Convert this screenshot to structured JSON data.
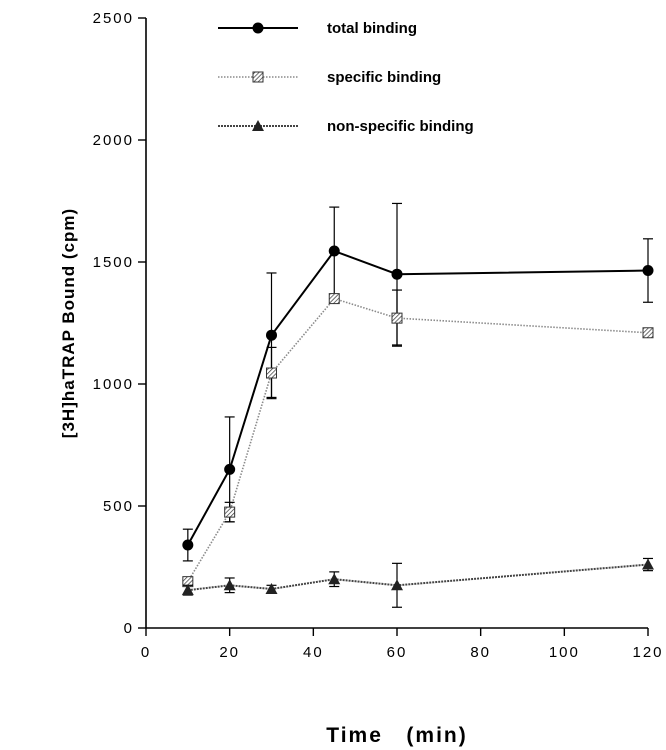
{
  "chart_data": {
    "type": "line",
    "xlabel": "Time   (min)",
    "ylabel": "[3H]haTRAP  Bound  (cpm)",
    "xlim": [
      0,
      120
    ],
    "ylim": [
      0,
      2500
    ],
    "xticks": [
      0,
      20,
      40,
      60,
      80,
      100,
      120
    ],
    "yticks": [
      0,
      500,
      1000,
      1500,
      2000,
      2500
    ],
    "xtick_labels": [
      "0",
      "20",
      "40",
      "60",
      "80",
      "100",
      "120"
    ],
    "ytick_labels": [
      "0",
      "500",
      "1000",
      "1500",
      "2000",
      "2500"
    ],
    "grid": false,
    "legend_position": "top-center",
    "series": [
      {
        "name": "total binding",
        "marker": "circle",
        "color": "#000000",
        "line_style": "solid",
        "x": [
          10,
          20,
          30,
          45,
          60,
          120
        ],
        "y": [
          340,
          650,
          1200,
          1545,
          1450,
          1465
        ],
        "err": [
          65,
          215,
          255,
          180,
          290,
          130
        ]
      },
      {
        "name": "specific binding",
        "marker": "hatched-square",
        "color": "#7a7a7a",
        "line_style": "dotted",
        "x": [
          10,
          20,
          30,
          45,
          60,
          120
        ],
        "y": [
          190,
          475,
          1045,
          1350,
          1270,
          1210
        ],
        "err": [
          0,
          40,
          105,
          0,
          115,
          0
        ]
      },
      {
        "name": "non-specific binding",
        "marker": "triangle",
        "color": "#444444",
        "line_style": "dense",
        "x": [
          10,
          20,
          30,
          45,
          60,
          120
        ],
        "y": [
          155,
          175,
          160,
          200,
          175,
          260
        ],
        "err": [
          20,
          30,
          15,
          30,
          90,
          25
        ]
      }
    ]
  }
}
